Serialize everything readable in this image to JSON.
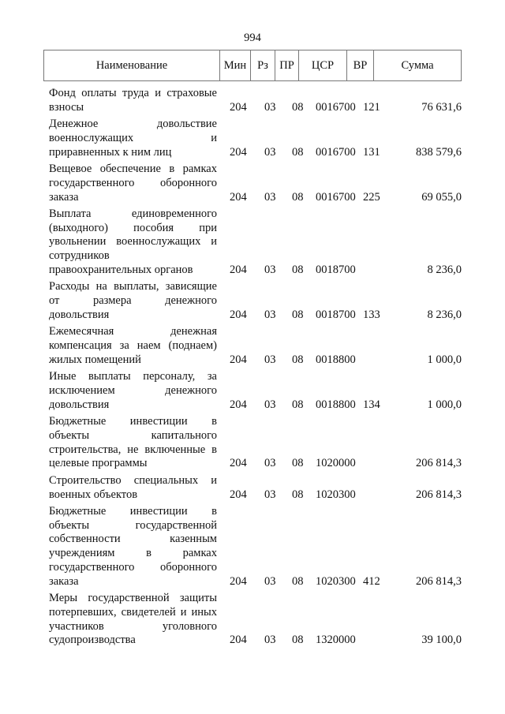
{
  "page_number": "994",
  "header": {
    "name": "Наименование",
    "min": "Мин",
    "rz": "Рз",
    "pr": "ПР",
    "csr": "ЦСР",
    "vr": "ВР",
    "sum": "Сумма"
  },
  "rows": [
    {
      "lines": [
        "Фонд оплаты труда и страховые",
        "взносы"
      ],
      "min": "204",
      "rz": "03",
      "pr": "08",
      "csr": "0016700",
      "vr": "121",
      "sum": "76 631,6"
    },
    {
      "lines": [
        "Денежное довольствие",
        "военнослужащих и",
        "приравненных к ним лиц"
      ],
      "min": "204",
      "rz": "03",
      "pr": "08",
      "csr": "0016700",
      "vr": "131",
      "sum": "838 579,6"
    },
    {
      "lines": [
        "Вещевое обеспечение в рамках",
        "государственного оборонного",
        "заказа"
      ],
      "min": "204",
      "rz": "03",
      "pr": "08",
      "csr": "0016700",
      "vr": "225",
      "sum": "69 055,0"
    },
    {
      "lines": [
        "Выплата единовременного",
        "(выходного) пособия при",
        "увольнении военнослужащих и",
        "сотрудников",
        "правоохранительных органов"
      ],
      "min": "204",
      "rz": "03",
      "pr": "08",
      "csr": "0018700",
      "vr": "",
      "sum": "8 236,0"
    },
    {
      "lines": [
        "Расходы на выплаты, зависящие",
        "от размера денежного",
        "довольствия"
      ],
      "min": "204",
      "rz": "03",
      "pr": "08",
      "csr": "0018700",
      "vr": "133",
      "sum": "8 236,0"
    },
    {
      "lines": [
        "Ежемесячная денежная",
        "компенсация за наем (поднаем)",
        "жилых помещений"
      ],
      "min": "204",
      "rz": "03",
      "pr": "08",
      "csr": "0018800",
      "vr": "",
      "sum": "1 000,0"
    },
    {
      "lines": [
        "Иные выплаты персоналу, за",
        "исключением денежного",
        "довольствия"
      ],
      "min": "204",
      "rz": "03",
      "pr": "08",
      "csr": "0018800",
      "vr": "134",
      "sum": "1 000,0"
    },
    {
      "lines": [
        "Бюджетные инвестиции в",
        "объекты капитального",
        "строительства, не включенные в",
        "целевые программы"
      ],
      "min": "204",
      "rz": "03",
      "pr": "08",
      "csr": "1020000",
      "vr": "",
      "sum": "206 814,3"
    },
    {
      "lines": [
        "Строительство специальных и",
        "военных объектов"
      ],
      "min": "204",
      "rz": "03",
      "pr": "08",
      "csr": "1020300",
      "vr": "",
      "sum": "206 814,3"
    },
    {
      "lines": [
        "Бюджетные инвестиции в",
        "объекты государственной",
        "собственности казенным",
        "учреждениям в рамках",
        "государственного оборонного",
        "заказа"
      ],
      "min": "204",
      "rz": "03",
      "pr": "08",
      "csr": "1020300",
      "vr": "412",
      "sum": "206 814,3"
    },
    {
      "lines": [
        "Меры государственной защиты",
        "потерпевших, свидетелей и иных",
        "участников уголовного",
        "судопроизводства"
      ],
      "min": "204",
      "rz": "03",
      "pr": "08",
      "csr": "1320000",
      "vr": "",
      "sum": "39 100,0"
    }
  ]
}
